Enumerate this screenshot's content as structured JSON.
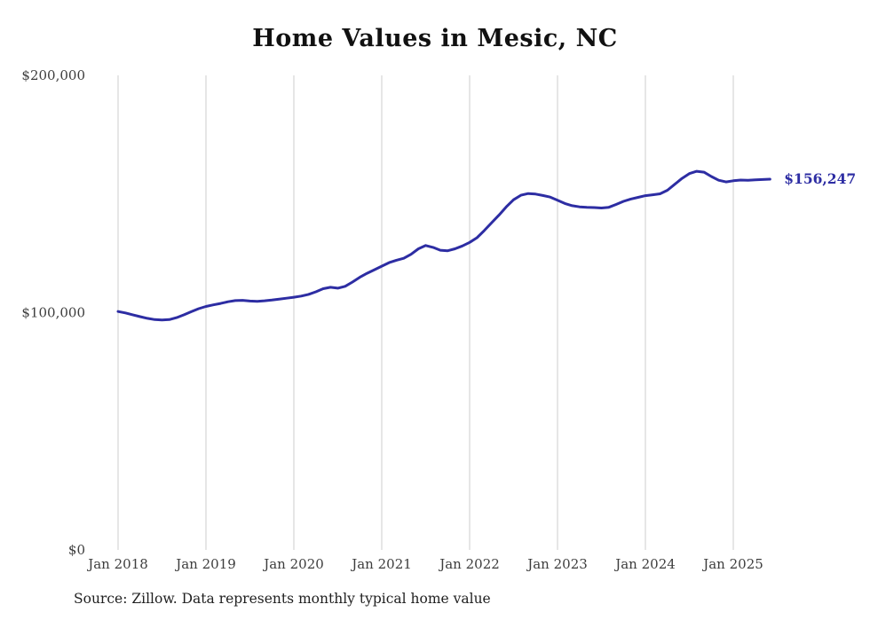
{
  "chart": {
    "title": "Home Values in Mesic, NC",
    "source": "Source: Zillow. Data represents monthly typical home value",
    "end_label": "$156,247",
    "line_color": "#2d2da3",
    "grid_color": "#cccccc"
  },
  "chart_data": {
    "type": "line",
    "title": "Home Values in Mesic, NC",
    "xlabel": "",
    "ylabel": "",
    "ylim": [
      0,
      200000
    ],
    "grid": "vertical-yearly",
    "legend": "none",
    "x_start": "2018-01",
    "x_interval_months": 1,
    "x_ticks": [
      "Jan 2018",
      "Jan 2019",
      "Jan 2020",
      "Jan 2021",
      "Jan 2022",
      "Jan 2023",
      "Jan 2024",
      "Jan 2025"
    ],
    "y_ticks": [
      {
        "value": 0,
        "label": "$0"
      },
      {
        "value": 100000,
        "label": "$100,000"
      },
      {
        "value": 200000,
        "label": "$200,000"
      }
    ],
    "end_value_label": "$156,247",
    "series": [
      {
        "name": "Typical home value (monthly)",
        "values": [
          100500,
          99900,
          99100,
          98300,
          97600,
          97100,
          96900,
          97100,
          97900,
          99100,
          100400,
          101700,
          102600,
          103300,
          103900,
          104600,
          105100,
          105200,
          104900,
          104800,
          105000,
          105300,
          105700,
          106100,
          106500,
          107000,
          107700,
          108800,
          110100,
          110700,
          110300,
          111100,
          112900,
          114900,
          116600,
          118100,
          119600,
          121100,
          122100,
          122900,
          124600,
          126900,
          128300,
          127500,
          126300,
          126100,
          126900,
          128100,
          129600,
          131600,
          134600,
          137900,
          141100,
          144600,
          147600,
          149500,
          150200,
          150000,
          149400,
          148700,
          147400,
          146000,
          145100,
          144600,
          144400,
          144300,
          144100,
          144400,
          145600,
          146900,
          147900,
          148600,
          149300,
          149700,
          150100,
          151600,
          154100,
          156600,
          158600,
          159600,
          159200,
          157400,
          155800,
          155100,
          155600,
          155900,
          155800,
          156000,
          156100,
          156247
        ]
      }
    ]
  }
}
